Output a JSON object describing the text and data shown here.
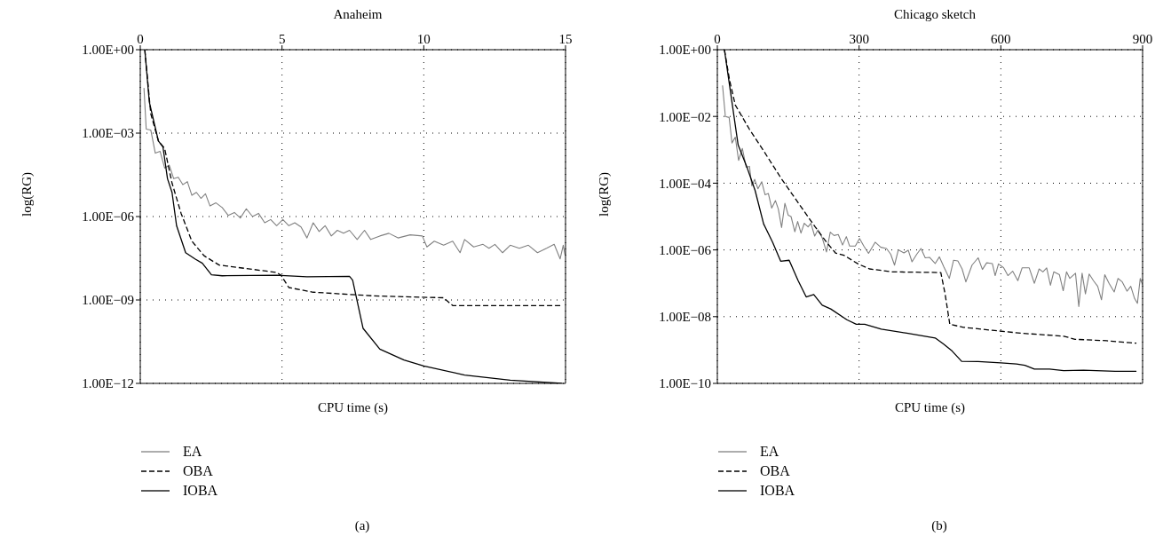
{
  "chart_data": [
    {
      "type": "line",
      "title": "Anaheim",
      "xlabel": "CPU time (s)",
      "ylabel": "log(RG)",
      "log": "y",
      "grid": true,
      "legend": "bottom",
      "xlim": [
        0,
        15
      ],
      "xticks": [
        0,
        5,
        10,
        15
      ],
      "ylim": [
        1e-12,
        1
      ],
      "yticks": [
        {
          "value": 1,
          "label": "1.00E+00"
        },
        {
          "value": 0.001,
          "label": "1.00E−03"
        },
        {
          "value": 1e-06,
          "label": "1.00E−06"
        },
        {
          "value": 1e-09,
          "label": "1.00E−09"
        },
        {
          "value": 1e-12,
          "label": "1.00E−12"
        }
      ],
      "annotations": [
        "(a)"
      ],
      "series": [
        {
          "name": "EA",
          "color": "#808080",
          "line_style": "solid",
          "x": [
            0.13,
            0.21,
            0.37,
            0.53,
            0.7,
            0.86,
            1.02,
            1.18,
            1.34,
            1.5,
            1.66,
            1.82,
            1.98,
            2.14,
            2.3,
            2.46,
            2.67,
            2.89,
            3.1,
            3.32,
            3.53,
            3.74,
            3.96,
            4.17,
            4.39,
            4.6,
            4.81,
            5.03,
            5.24,
            5.45,
            5.67,
            5.88,
            6.1,
            6.31,
            6.52,
            6.74,
            6.95,
            7.17,
            7.38,
            7.65,
            7.91,
            8.13,
            8.45,
            8.77,
            9.09,
            9.52,
            9.95,
            10.11,
            10.37,
            10.7,
            11.02,
            11.28,
            11.44,
            11.76,
            12.09,
            12.3,
            12.51,
            12.78,
            13.05,
            13.37,
            13.69,
            14.01,
            14.33,
            14.6,
            14.81,
            14.92,
            14.99
          ],
          "values": [
            0.042,
            0.0014,
            0.0013,
            0.00019,
            0.00022,
            5.5e-05,
            7.1e-05,
            2.3e-05,
            2.6e-05,
            1.4e-05,
            1.8e-05,
            5.8e-06,
            7.4e-06,
            4.5e-06,
            6.6e-06,
            2.4e-06,
            3.1e-06,
            2.1e-06,
            1.1e-06,
            1.4e-06,
            8.9e-07,
            1.9e-06,
            1e-06,
            1.3e-06,
            6e-07,
            7.8e-07,
            4.7e-07,
            7.8e-07,
            4.7e-07,
            6e-07,
            4.2e-07,
            1.7e-07,
            6e-07,
            2.9e-07,
            4.7e-07,
            2e-07,
            3.2e-07,
            2.5e-07,
            3.2e-07,
            1.5e-07,
            3.2e-07,
            1.5e-07,
            2e-07,
            2.5e-07,
            1.7e-07,
            2.2e-07,
            2e-07,
            8.1e-08,
            1.3e-07,
            9.3e-08,
            1.3e-07,
            5e-08,
            1.5e-07,
            8.1e-08,
            1e-07,
            7.2e-08,
            1e-07,
            5e-08,
            9.3e-08,
            7.2e-08,
            9.3e-08,
            5e-08,
            7.2e-08,
            1e-07,
            3e-08,
            9.3e-08,
            3.9e-08
          ]
        },
        {
          "name": "OBA",
          "color": "#000000",
          "line_style": "dashed",
          "x": [
            0.16,
            0.37,
            0.64,
            0.86,
            1.12,
            1.44,
            1.82,
            2.25,
            2.78,
            4.81,
            4.97,
            5.24,
            6.1,
            8.24,
            10.7,
            11.02,
            14.87
          ],
          "values": [
            1,
            0.005,
            0.00052,
            0.00028,
            1.6e-05,
            1.3e-06,
            1.3e-07,
            3.9e-08,
            1.8e-08,
            9.8e-09,
            7.6e-09,
            2.8e-09,
            1.9e-09,
            1.4e-09,
            1.2e-09,
            6.3e-10,
            6.3e-10
          ]
        },
        {
          "name": "IOBA",
          "color": "#000000",
          "line_style": "solid",
          "x": [
            0.16,
            0.32,
            0.64,
            0.8,
            0.96,
            1.12,
            1.28,
            1.6,
            1.93,
            2.19,
            2.51,
            2.89,
            4.81,
            5.88,
            7.38,
            7.49,
            7.86,
            8.45,
            9.3,
            10,
            11.44,
            13.05,
            14.87
          ],
          "values": [
            1,
            0.013,
            0.00052,
            0.00032,
            2.3e-05,
            7.4e-06,
            4.7e-07,
            5e-08,
            3e-08,
            2.1e-08,
            8.1e-09,
            7.4e-09,
            7.8e-09,
            6.8e-09,
            7.1e-09,
            5.2e-09,
            9.5e-11,
            1.7e-11,
            6.9e-12,
            4.2e-12,
            2e-12,
            1.3e-12,
            1e-12
          ]
        }
      ]
    },
    {
      "type": "line",
      "title": "Chicago sketch",
      "xlabel": "CPU time (s)",
      "ylabel": "log(RG)",
      "log": "y",
      "grid": true,
      "legend": "bottom",
      "xlim": [
        0,
        900
      ],
      "xticks": [
        0,
        300,
        600,
        900
      ],
      "ylim": [
        1e-10,
        1
      ],
      "yticks": [
        {
          "value": 1,
          "label": "1.00E+00"
        },
        {
          "value": 0.01,
          "label": "1.00E−02"
        },
        {
          "value": 0.0001,
          "label": "1.00E−04"
        },
        {
          "value": 1e-06,
          "label": "1.00E−06"
        },
        {
          "value": 1e-08,
          "label": "1.00E−08"
        },
        {
          "value": 1e-10,
          "label": "1.00E−10"
        }
      ],
      "annotations": [
        "(b)"
      ],
      "series": [
        {
          "name": "EA",
          "color": "#808080",
          "line_style": "solid",
          "x": [
            11,
            17,
            25,
            31,
            38,
            45,
            53,
            61,
            68,
            73,
            79,
            86,
            94,
            101,
            108,
            115,
            123,
            129,
            136,
            143,
            150,
            156,
            164,
            170,
            177,
            184,
            192,
            198,
            206,
            213,
            222,
            231,
            239,
            247,
            256,
            265,
            273,
            280,
            292,
            301,
            310,
            320,
            334,
            346,
            358,
            367,
            375,
            383,
            395,
            404,
            412,
            422,
            431,
            440,
            449,
            461,
            470,
            479,
            491,
            500,
            509,
            518,
            526,
            539,
            552,
            561,
            570,
            582,
            588,
            595,
            606,
            615,
            625,
            636,
            645,
            660,
            671,
            681,
            689,
            697,
            705,
            712,
            724,
            732,
            739,
            746,
            758,
            765,
            772,
            779,
            787,
            796,
            805,
            813,
            820,
            829,
            840,
            848,
            857,
            867,
            875,
            883,
            889,
            895,
            900
          ],
          "values": [
            0.085,
            0.01,
            0.0093,
            0.0016,
            0.0024,
            0.00048,
            0.0011,
            0.0003,
            0.00032,
            8.3e-05,
            0.00013,
            6.8e-05,
            0.00011,
            4.5e-05,
            4.9e-05,
            1.8e-05,
            3e-05,
            1.7e-05,
            4.7e-06,
            2.5e-05,
            1.1e-05,
            1e-05,
            3.5e-06,
            7.1e-06,
            3.2e-06,
            6.3e-06,
            4.9e-06,
            6.3e-06,
            2.6e-06,
            4e-06,
            2.3e-06,
            8.7e-07,
            3.4e-06,
            2.7e-06,
            2.9e-06,
            1.4e-06,
            2.5e-06,
            1.3e-06,
            1.3e-06,
            2.2e-06,
            1.3e-06,
            7.9e-07,
            1.7e-06,
            1.2e-06,
            1.1e-06,
            7.4e-07,
            3.5e-07,
            1e-06,
            8.1e-07,
            9.8e-07,
            4.4e-07,
            7.4e-07,
            1.1e-06,
            5.8e-07,
            6e-07,
            3.9e-07,
            6.2e-07,
            3.2e-07,
            1.4e-07,
            4.9e-07,
            4.7e-07,
            2.7e-07,
            1.1e-07,
            3.5e-07,
            5.8e-07,
            2.6e-07,
            4.1e-07,
            3.9e-07,
            1.7e-07,
            3.8e-07,
            2.9e-07,
            1.7e-07,
            2.3e-07,
            1.2e-07,
            2.9e-07,
            2.9e-07,
            1e-07,
            2.7e-07,
            2.2e-07,
            2.9e-07,
            8.7e-08,
            2.2e-07,
            1.8e-07,
            6e-08,
            2.2e-07,
            1.4e-07,
            2e-07,
            2e-08,
            2e-07,
            4.8e-08,
            1.9e-07,
            1.2e-07,
            8.1e-08,
            3.2e-08,
            1.8e-07,
            1e-07,
            5.5e-08,
            1.4e-07,
            1.1e-07,
            5.8e-08,
            8.1e-08,
            3.5e-08,
            2.5e-08,
            1.4e-07,
            9.1e-08
          ]
        },
        {
          "name": "OBA",
          "color": "#000000",
          "line_style": "dashed",
          "x": [
            15,
            26,
            38,
            68,
            98,
            135,
            171,
            207,
            231,
            250,
            268,
            298,
            322,
            370,
            473,
            482,
            492,
            521,
            582,
            642,
            733,
            757,
            824,
            887
          ],
          "values": [
            1,
            0.12,
            0.022,
            0.0041,
            0.00093,
            0.00014,
            2.6e-05,
            4.9e-06,
            1.7e-06,
            8.1e-07,
            6.9e-07,
            3.8e-07,
            2.7e-07,
            2.2e-07,
            2.1e-07,
            4.8e-08,
            5.9e-09,
            4.8e-09,
            3.9e-09,
            3.2e-09,
            2.6e-09,
            2.1e-09,
            1.9e-09,
            1.6e-09
          ]
        },
        {
          "name": "IOBA",
          "color": "#000000",
          "line_style": "solid",
          "x": [
            15,
            44,
            62,
            80,
            98,
            117,
            134,
            152,
            171,
            188,
            204,
            222,
            240,
            274,
            294,
            312,
            347,
            401,
            461,
            479,
            497,
            517,
            552,
            600,
            633,
            651,
            671,
            703,
            733,
            775,
            842,
            887
          ],
          "values": [
            1,
            0.0014,
            0.00032,
            6e-05,
            6e-06,
            1.7e-06,
            4.6e-07,
            4.9e-07,
            1.2e-07,
            3.9e-08,
            4.6e-08,
            2.2e-08,
            1.7e-08,
            8.1e-09,
            5.9e-09,
            5.9e-09,
            4.2e-09,
            3.2e-09,
            2.3e-09,
            1.5e-09,
            9.3e-10,
            4.6e-10,
            4.5e-10,
            4.1e-10,
            3.8e-10,
            3.5e-10,
            2.7e-10,
            2.7e-10,
            2.4e-10,
            2.5e-10,
            2.3e-10,
            2.3e-10
          ]
        }
      ]
    }
  ]
}
